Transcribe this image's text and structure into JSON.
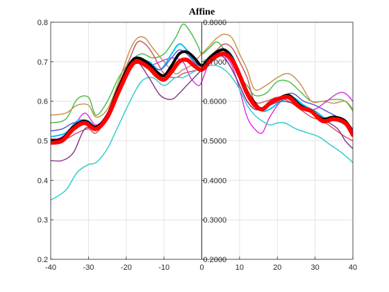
{
  "chart_data": {
    "type": "line",
    "title": "Affine",
    "xlabel": "",
    "ylabel": "",
    "xlim": [
      -40,
      40
    ],
    "ylim": [
      0.2,
      0.8
    ],
    "x_ticks": [
      "-40",
      "-30",
      "-20",
      "-10",
      "0",
      "10",
      "20",
      "30",
      "40"
    ],
    "y_ticks": [
      "0.2",
      "0.3",
      "0.4",
      "0.5",
      "0.6",
      "0.7",
      "0.8"
    ],
    "y_ticks_right": [
      "0.2000",
      "0.3000",
      "0.4000",
      "0.5000",
      "0.6000",
      "0.7000",
      "0.8000"
    ],
    "grid": true,
    "center_divider_x": 0,
    "series": [
      {
        "color": "#4dbf4d",
        "width": 1.5,
        "x": [
          -40,
          -36,
          -33,
          -30,
          -28,
          -25,
          -22,
          -19,
          -16,
          -13,
          -10,
          -7,
          -5,
          -3,
          -1,
          0,
          2,
          4,
          6,
          8,
          10,
          12,
          14,
          17,
          20,
          23,
          26,
          29,
          32,
          35,
          38,
          40
        ],
        "y": [
          0.545,
          0.555,
          0.605,
          0.61,
          0.565,
          0.6,
          0.66,
          0.7,
          0.72,
          0.71,
          0.72,
          0.76,
          0.795,
          0.775,
          0.74,
          0.72,
          0.735,
          0.75,
          0.73,
          0.7,
          0.66,
          0.64,
          0.615,
          0.62,
          0.65,
          0.65,
          0.625,
          0.6,
          0.6,
          0.605,
          0.6,
          0.575
        ]
      },
      {
        "color": "#c8934a",
        "width": 1.5,
        "x": [
          -40,
          -36,
          -33,
          -30,
          -28,
          -25,
          -22,
          -19,
          -17,
          -15,
          -13,
          -10,
          -7,
          -5,
          -3,
          -1,
          0,
          2,
          4,
          6,
          8,
          10,
          12,
          14,
          17,
          20,
          23,
          26,
          29,
          32,
          35,
          38,
          40
        ],
        "y": [
          0.565,
          0.57,
          0.59,
          0.59,
          0.56,
          0.58,
          0.65,
          0.73,
          0.76,
          0.76,
          0.735,
          0.7,
          0.67,
          0.68,
          0.69,
          0.71,
          0.72,
          0.74,
          0.76,
          0.77,
          0.76,
          0.72,
          0.68,
          0.63,
          0.64,
          0.66,
          0.67,
          0.645,
          0.6,
          0.6,
          0.595,
          0.6,
          0.58
        ]
      },
      {
        "color": "#cc5560",
        "width": 1.5,
        "x": [
          -40,
          -36,
          -33,
          -30,
          -28,
          -25,
          -22,
          -19,
          -17,
          -15,
          -13,
          -10,
          -7,
          -5,
          -3,
          -1,
          0,
          2,
          4,
          6,
          8,
          10,
          12,
          14,
          17,
          20,
          23,
          26,
          29,
          32,
          35,
          38,
          40
        ],
        "y": [
          0.505,
          0.505,
          0.52,
          0.53,
          0.52,
          0.56,
          0.64,
          0.71,
          0.75,
          0.745,
          0.72,
          0.67,
          0.66,
          0.67,
          0.675,
          0.68,
          0.685,
          0.71,
          0.73,
          0.745,
          0.735,
          0.7,
          0.66,
          0.6,
          0.6,
          0.61,
          0.6,
          0.58,
          0.56,
          0.55,
          0.53,
          0.51,
          0.5
        ]
      },
      {
        "color": "#e035e0",
        "width": 1.5,
        "x": [
          -40,
          -37,
          -34,
          -31,
          -28,
          -25,
          -22,
          -19,
          -17,
          -14,
          -11,
          -8,
          -5,
          -3,
          -1,
          0,
          2,
          4,
          6,
          8,
          10,
          12,
          14,
          16,
          18,
          21,
          24,
          27,
          30,
          33,
          36,
          38,
          40
        ],
        "y": [
          0.5,
          0.51,
          0.535,
          0.57,
          0.54,
          0.57,
          0.64,
          0.69,
          0.7,
          0.69,
          0.7,
          0.71,
          0.7,
          0.66,
          0.64,
          0.65,
          0.7,
          0.72,
          0.715,
          0.69,
          0.63,
          0.56,
          0.53,
          0.52,
          0.56,
          0.6,
          0.61,
          0.58,
          0.58,
          0.6,
          0.62,
          0.62,
          0.6
        ]
      },
      {
        "color": "#33cccc",
        "width": 1.5,
        "x": [
          -40,
          -36,
          -33,
          -30,
          -28,
          -25,
          -22,
          -19,
          -16,
          -13,
          -10,
          -7,
          -5,
          -3,
          -1,
          0,
          2,
          4,
          6,
          8,
          10,
          12,
          14,
          16,
          18,
          20,
          22,
          25,
          28,
          31,
          34,
          37,
          40
        ],
        "y": [
          0.35,
          0.375,
          0.42,
          0.44,
          0.445,
          0.48,
          0.54,
          0.6,
          0.65,
          0.66,
          0.64,
          0.66,
          0.66,
          0.67,
          0.68,
          0.68,
          0.69,
          0.69,
          0.68,
          0.66,
          0.63,
          0.59,
          0.565,
          0.55,
          0.54,
          0.545,
          0.545,
          0.53,
          0.52,
          0.51,
          0.49,
          0.47,
          0.445
        ]
      },
      {
        "color": "#00bfff",
        "width": 2,
        "x": [
          -40,
          -36,
          -33,
          -30,
          -28,
          -25,
          -22,
          -19,
          -17,
          -14,
          -11,
          -8,
          -6,
          -4,
          -2,
          0,
          2,
          4,
          6,
          8,
          10,
          12,
          14,
          16,
          18,
          21,
          24,
          27,
          30,
          33,
          36,
          38,
          40
        ],
        "y": [
          0.51,
          0.52,
          0.55,
          0.55,
          0.535,
          0.555,
          0.62,
          0.685,
          0.705,
          0.7,
          0.68,
          0.72,
          0.745,
          0.73,
          0.7,
          0.68,
          0.7,
          0.72,
          0.73,
          0.715,
          0.67,
          0.62,
          0.59,
          0.575,
          0.58,
          0.6,
          0.61,
          0.59,
          0.575,
          0.555,
          0.55,
          0.54,
          0.525
        ]
      },
      {
        "color": "#5a5ad0",
        "width": 1.5,
        "x": [
          -40,
          -37,
          -34,
          -31,
          -28,
          -25,
          -22,
          -19,
          -17,
          -14,
          -11,
          -8,
          -6,
          -4,
          -2,
          0,
          2,
          4,
          6,
          8,
          10,
          12,
          14,
          16,
          18,
          21,
          24,
          27,
          30,
          33,
          36,
          38,
          40
        ],
        "y": [
          0.525,
          0.53,
          0.545,
          0.545,
          0.53,
          0.56,
          0.63,
          0.69,
          0.7,
          0.695,
          0.68,
          0.71,
          0.73,
          0.72,
          0.7,
          0.69,
          0.71,
          0.72,
          0.71,
          0.68,
          0.64,
          0.6,
          0.58,
          0.58,
          0.59,
          0.61,
          0.62,
          0.6,
          0.59,
          0.575,
          0.56,
          0.55,
          0.53
        ]
      },
      {
        "color": "#8b3a8b",
        "width": 1.5,
        "x": [
          -40,
          -37,
          -34,
          -31,
          -28,
          -25,
          -22,
          -19,
          -17,
          -14,
          -11,
          -8,
          -6,
          -4,
          -2,
          0,
          2,
          4,
          6,
          8,
          10,
          12,
          14,
          16,
          18,
          21,
          24,
          27,
          30,
          33,
          36,
          38,
          40
        ],
        "y": [
          0.45,
          0.45,
          0.47,
          0.53,
          0.53,
          0.56,
          0.64,
          0.69,
          0.7,
          0.66,
          0.615,
          0.605,
          0.62,
          0.64,
          0.66,
          0.68,
          0.7,
          0.715,
          0.71,
          0.68,
          0.64,
          0.6,
          0.58,
          0.58,
          0.59,
          0.6,
          0.595,
          0.58,
          0.57,
          0.55,
          0.53,
          0.5,
          0.48
        ]
      },
      {
        "color": "#000000",
        "width": 4,
        "x": [
          -40,
          -37,
          -34,
          -31,
          -28,
          -25,
          -22,
          -19,
          -17,
          -14,
          -12,
          -10,
          -8,
          -6,
          -4,
          -2,
          0,
          2,
          4,
          6,
          8,
          10,
          12,
          14,
          16,
          18,
          20,
          23,
          26,
          29,
          32,
          35,
          38,
          40
        ],
        "y": [
          0.5,
          0.505,
          0.535,
          0.55,
          0.535,
          0.565,
          0.635,
          0.695,
          0.71,
          0.695,
          0.675,
          0.665,
          0.69,
          0.72,
          0.725,
          0.71,
          0.69,
          0.71,
          0.725,
          0.73,
          0.71,
          0.67,
          0.625,
          0.595,
          0.58,
          0.595,
          0.605,
          0.615,
          0.59,
          0.575,
          0.555,
          0.56,
          0.55,
          0.52
        ]
      },
      {
        "color": "#ff0000",
        "width": 6,
        "x": [
          -40,
          -37,
          -34,
          -31,
          -28,
          -25,
          -22,
          -19,
          -17,
          -14,
          -12,
          -10,
          -8,
          -6,
          -4,
          -2,
          0,
          2,
          4,
          6,
          8,
          10,
          12,
          14,
          16,
          18,
          20,
          23,
          26,
          29,
          32,
          35,
          38,
          40
        ],
        "y": [
          0.495,
          0.5,
          0.53,
          0.545,
          0.53,
          0.56,
          0.625,
          0.685,
          0.7,
          0.685,
          0.665,
          0.655,
          0.675,
          0.7,
          0.705,
          0.69,
          0.68,
          0.7,
          0.715,
          0.72,
          0.705,
          0.665,
          0.62,
          0.59,
          0.58,
          0.595,
          0.605,
          0.61,
          0.585,
          0.575,
          0.55,
          0.555,
          0.545,
          0.515
        ]
      }
    ]
  }
}
